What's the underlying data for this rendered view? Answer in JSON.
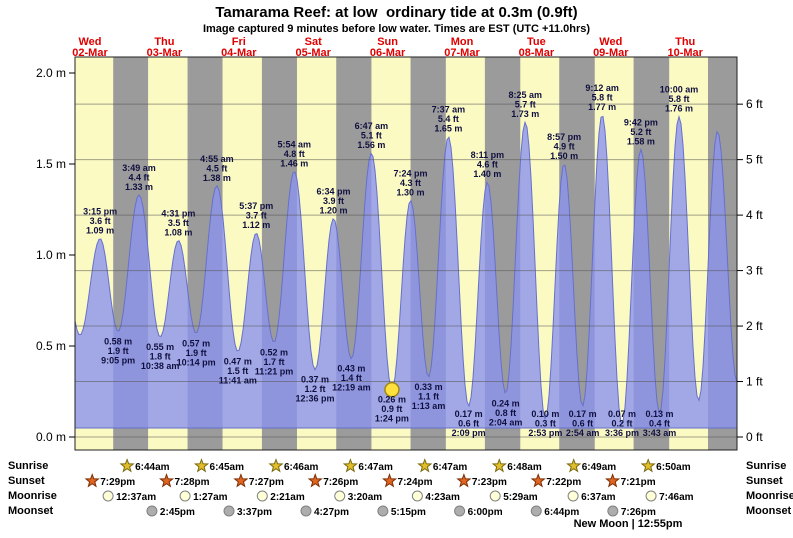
{
  "title": "Tamarama Reef: at low  ordinary tide at 0.3m (0.9ft)",
  "subtitle": "Image captured 9 minutes before low water. Times are EST (UTC +11.0hrs)",
  "colors": {
    "day_band": "#FBFAC3",
    "night_band": "#9B9B9B",
    "tide_fill": "#8C94EE",
    "tide_stroke": "#6670CC",
    "date_red": "#E00000",
    "label_text": "#101040",
    "marker_yellow": "#FFE03C",
    "marker_border": "#A08818",
    "gridline": "#555555",
    "frame": "#222222"
  },
  "chart_data": {
    "type": "area",
    "y_axis": {
      "left_unit": "m",
      "right_unit": "ft",
      "left_ticks": [
        "0.0 m",
        "0.5 m",
        "1.0 m",
        "1.5 m",
        "2.0 m"
      ],
      "right_ticks": [
        "0 ft",
        "1 ft",
        "2 ft",
        "3 ft",
        "4 ft",
        "5 ft",
        "6 ft"
      ],
      "ylim_m": [
        0,
        2.15
      ]
    },
    "x_axis": {
      "days": [
        {
          "weekday": "Wed",
          "date": "02-Mar"
        },
        {
          "weekday": "Thu",
          "date": "03-Mar"
        },
        {
          "weekday": "Fri",
          "date": "04-Mar"
        },
        {
          "weekday": "Sat",
          "date": "05-Mar"
        },
        {
          "weekday": "Sun",
          "date": "06-Mar"
        },
        {
          "weekday": "Mon",
          "date": "07-Mar"
        },
        {
          "weekday": "Tue",
          "date": "08-Mar"
        },
        {
          "weekday": "Wed",
          "date": "09-Mar"
        },
        {
          "weekday": "Thu",
          "date": "10-Mar"
        }
      ]
    },
    "tide_extremes": [
      {
        "type": "high",
        "day": 0,
        "time": "3:15 pm",
        "ft_label": "3.6 ft",
        "m_label": "1.09 m",
        "height_m": 1.09
      },
      {
        "type": "low",
        "day": 0,
        "time": "9:05 pm",
        "ft_label": "1.9 ft",
        "m_label": "0.58 m",
        "height_m": 0.58
      },
      {
        "type": "high",
        "day": 1,
        "time": "3:49 am",
        "ft_label": "4.4 ft",
        "m_label": "1.33 m",
        "height_m": 1.33
      },
      {
        "type": "low",
        "day": 1,
        "time": "10:38 am",
        "ft_label": "1.8 ft",
        "m_label": "0.55 m",
        "height_m": 0.55
      },
      {
        "type": "high",
        "day": 1,
        "time": "4:31 pm",
        "ft_label": "3.5 ft",
        "m_label": "1.08 m",
        "height_m": 1.08
      },
      {
        "type": "low",
        "day": 1,
        "time": "10:14 pm",
        "ft_label": "1.9 ft",
        "m_label": "0.57 m",
        "height_m": 0.57
      },
      {
        "type": "high",
        "day": 2,
        "time": "4:55 am",
        "ft_label": "4.5 ft",
        "m_label": "1.38 m",
        "height_m": 1.38
      },
      {
        "type": "low",
        "day": 2,
        "time": "11:41 am",
        "ft_label": "1.5 ft",
        "m_label": "0.47 m",
        "height_m": 0.47
      },
      {
        "type": "high",
        "day": 2,
        "time": "5:37 pm",
        "ft_label": "3.7 ft",
        "m_label": "1.12 m",
        "height_m": 1.12
      },
      {
        "type": "low",
        "day": 2,
        "time": "11:21 pm",
        "ft_label": "1.7 ft",
        "m_label": "0.52 m",
        "height_m": 0.52
      },
      {
        "type": "high",
        "day": 3,
        "time": "5:54 am",
        "ft_label": "4.8 ft",
        "m_label": "1.46 m",
        "height_m": 1.46
      },
      {
        "type": "low",
        "day": 3,
        "time": "12:36 pm",
        "ft_label": "1.2 ft",
        "m_label": "0.37 m",
        "height_m": 0.37
      },
      {
        "type": "high",
        "day": 3,
        "time": "6:34 pm",
        "ft_label": "3.9 ft",
        "m_label": "1.20 m",
        "height_m": 1.2
      },
      {
        "type": "low",
        "day": 4,
        "time": "12:19 am",
        "ft_label": "1.4 ft",
        "m_label": "0.43 m",
        "height_m": 0.43
      },
      {
        "type": "high",
        "day": 4,
        "time": "6:47 am",
        "ft_label": "5.1 ft",
        "m_label": "1.56 m",
        "height_m": 1.56
      },
      {
        "type": "low",
        "day": 4,
        "time": "1:24 pm",
        "ft_label": "0.9 ft",
        "m_label": "0.26 m",
        "height_m": 0.26,
        "current": true
      },
      {
        "type": "high",
        "day": 4,
        "time": "7:24 pm",
        "ft_label": "4.3 ft",
        "m_label": "1.30 m",
        "height_m": 1.3
      },
      {
        "type": "low",
        "day": 5,
        "time": "1:13 am",
        "ft_label": "1.1 ft",
        "m_label": "0.33 m",
        "height_m": 0.33
      },
      {
        "type": "high",
        "day": 5,
        "time": "7:37 am",
        "ft_label": "5.4 ft",
        "m_label": "1.65 m",
        "height_m": 1.65
      },
      {
        "type": "low",
        "day": 5,
        "time": "2:09 pm",
        "ft_label": "0.6 ft",
        "m_label": "0.17 m",
        "height_m": 0.17
      },
      {
        "type": "high",
        "day": 5,
        "time": "8:11 pm",
        "ft_label": "4.6 ft",
        "m_label": "1.40 m",
        "height_m": 1.4
      },
      {
        "type": "low",
        "day": 6,
        "time": "2:04 am",
        "ft_label": "0.8 ft",
        "m_label": "0.24 m",
        "height_m": 0.24
      },
      {
        "type": "high",
        "day": 6,
        "time": "8:25 am",
        "ft_label": "5.7 ft",
        "m_label": "1.73 m",
        "height_m": 1.73
      },
      {
        "type": "low",
        "day": 6,
        "time": "2:53 pm",
        "ft_label": "0.3 ft",
        "m_label": "0.10 m",
        "height_m": 0.1
      },
      {
        "type": "high",
        "day": 6,
        "time": "8:57 pm",
        "ft_label": "4.9 ft",
        "m_label": "1.50 m",
        "height_m": 1.5
      },
      {
        "type": "low",
        "day": 7,
        "time": "2:54 am",
        "ft_label": "0.6 ft",
        "m_label": "0.17 m",
        "height_m": 0.17
      },
      {
        "type": "high",
        "day": 7,
        "time": "9:12 am",
        "ft_label": "5.8 ft",
        "m_label": "1.77 m",
        "height_m": 1.77
      },
      {
        "type": "low",
        "day": 7,
        "time": "3:36 pm",
        "ft_label": "0.2 ft",
        "m_label": "0.07 m",
        "height_m": 0.07
      },
      {
        "type": "high",
        "day": 7,
        "time": "9:42 pm",
        "ft_label": "5.2 ft",
        "m_label": "1.58 m",
        "height_m": 1.58
      },
      {
        "type": "low",
        "day": 8,
        "time": "3:43 am",
        "ft_label": "0.4 ft",
        "m_label": "0.13 m",
        "height_m": 0.13
      },
      {
        "type": "high",
        "day": 8,
        "time": "10:00 am",
        "ft_label": "5.8 ft",
        "m_label": "1.76 m",
        "height_m": 1.76
      }
    ],
    "curve_edge_points_estimated": [
      {
        "type": "high",
        "day": 0,
        "time": "2:40 am",
        "height_m": 1.05
      },
      {
        "type": "low",
        "day": 0,
        "time": "8:45 am",
        "height_m": 0.56
      },
      {
        "type": "low",
        "day": 8,
        "time": "4:20 pm",
        "height_m": 0.2
      },
      {
        "type": "high",
        "day": 8,
        "time": "10:25 pm",
        "height_m": 1.68
      },
      {
        "type": "low",
        "day": 9,
        "time": "4:45 am",
        "height_m": 0.3
      }
    ]
  },
  "astro": {
    "rows": [
      {
        "id": "sunrise",
        "label": "Sunrise",
        "icon": "sunrise-star-icon",
        "color": "#E2BE2A",
        "entries": [
          {
            "day": 1,
            "time": "6:44am"
          },
          {
            "day": 2,
            "time": "6:45am"
          },
          {
            "day": 3,
            "time": "6:46am"
          },
          {
            "day": 4,
            "time": "6:47am"
          },
          {
            "day": 5,
            "time": "6:47am"
          },
          {
            "day": 6,
            "time": "6:48am"
          },
          {
            "day": 7,
            "time": "6:49am"
          },
          {
            "day": 8,
            "time": "6:50am"
          }
        ]
      },
      {
        "id": "sunset",
        "label": "Sunset",
        "icon": "sunset-star-icon",
        "color": "#E2641E",
        "entries": [
          {
            "day": 0,
            "time": "7:29pm"
          },
          {
            "day": 1,
            "time": "7:28pm"
          },
          {
            "day": 2,
            "time": "7:27pm"
          },
          {
            "day": 3,
            "time": "7:26pm"
          },
          {
            "day": 4,
            "time": "7:24pm"
          },
          {
            "day": 5,
            "time": "7:23pm"
          },
          {
            "day": 6,
            "time": "7:22pm"
          },
          {
            "day": 7,
            "time": "7:21pm"
          }
        ]
      },
      {
        "id": "moonrise",
        "label": "Moonrise",
        "icon": "moonrise-circle-icon",
        "color": "#FFFFD8",
        "entries": [
          {
            "day": 1,
            "time": "12:37am"
          },
          {
            "day": 2,
            "time": "1:27am"
          },
          {
            "day": 3,
            "time": "2:21am"
          },
          {
            "day": 4,
            "time": "3:20am"
          },
          {
            "day": 5,
            "time": "4:23am"
          },
          {
            "day": 6,
            "time": "5:29am"
          },
          {
            "day": 7,
            "time": "6:37am"
          },
          {
            "day": 8,
            "time": "7:46am"
          }
        ]
      },
      {
        "id": "moonset",
        "label": "Moonset",
        "icon": "moonset-circle-icon",
        "color": "#ADADAD",
        "entries": [
          {
            "day": 1,
            "time": "2:45pm"
          },
          {
            "day": 2,
            "time": "3:37pm"
          },
          {
            "day": 3,
            "time": "4:27pm"
          },
          {
            "day": 4,
            "time": "5:15pm"
          },
          {
            "day": 5,
            "time": "6:00pm"
          },
          {
            "day": 6,
            "time": "6:44pm"
          },
          {
            "day": 7,
            "time": "7:26pm"
          }
        ]
      }
    ],
    "note": "New Moon | 12:55pm"
  }
}
